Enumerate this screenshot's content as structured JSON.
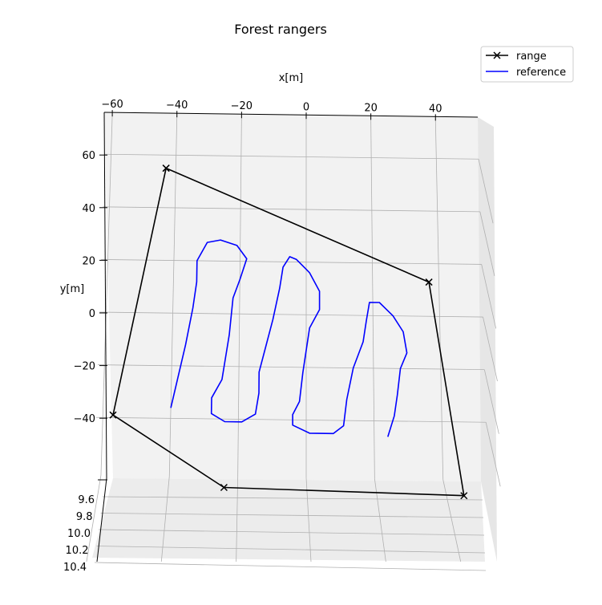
{
  "chart_data": {
    "type": "line",
    "projection": "3d",
    "title": "Forest rangers",
    "xlabel": "x[m]",
    "ylabel": "y[m]",
    "zlabel": "",
    "x_ticks": [
      -60,
      -40,
      -20,
      0,
      20,
      40
    ],
    "y_ticks": [
      60,
      40,
      20,
      0,
      -20,
      -40
    ],
    "z_ticks": [
      9.6,
      9.8,
      10.0,
      10.2,
      10.4
    ],
    "x_tick_labels": [
      "−60",
      "−40",
      "−20",
      "0",
      "20",
      "40"
    ],
    "y_tick_labels": [
      "60",
      "40",
      "20",
      "0",
      "−20",
      "−40"
    ],
    "z_tick_labels": [
      "9.6",
      "9.8",
      "10.0",
      "10.2",
      "10.4"
    ],
    "xlim": [
      -62,
      53
    ],
    "ylim": [
      -62,
      75
    ],
    "zlim": [
      9.5,
      10.45
    ],
    "grid": true,
    "legend_position": "top-right",
    "series": [
      {
        "name": "range",
        "color": "#000000",
        "marker": "x",
        "points": [
          {
            "x": -43,
            "y": 55
          },
          {
            "x": 37,
            "y": 13
          },
          {
            "x": 46,
            "y": -68
          },
          {
            "x": -24,
            "y": -66
          },
          {
            "x": -57,
            "y": -39
          },
          {
            "x": -43,
            "y": 55
          }
        ]
      },
      {
        "name": "reference",
        "color": "#0000ff",
        "marker": "none",
        "points": [
          {
            "x": -40,
            "y": -36
          },
          {
            "x": -36,
            "y": -12
          },
          {
            "x": -34,
            "y": 2
          },
          {
            "x": -33,
            "y": 12
          },
          {
            "x": -33,
            "y": 20
          },
          {
            "x": -30,
            "y": 27
          },
          {
            "x": -26,
            "y": 28
          },
          {
            "x": -21,
            "y": 26
          },
          {
            "x": -18,
            "y": 21
          },
          {
            "x": -20,
            "y": 13
          },
          {
            "x": -22,
            "y": 6
          },
          {
            "x": -23,
            "y": -8
          },
          {
            "x": -25,
            "y": -25
          },
          {
            "x": -28,
            "y": -32
          },
          {
            "x": -28,
            "y": -38
          },
          {
            "x": -24,
            "y": -41
          },
          {
            "x": -19,
            "y": -41
          },
          {
            "x": -15,
            "y": -38
          },
          {
            "x": -14,
            "y": -30
          },
          {
            "x": -14,
            "y": -22
          },
          {
            "x": -12,
            "y": -12
          },
          {
            "x": -10,
            "y": -2
          },
          {
            "x": -8,
            "y": 10
          },
          {
            "x": -7,
            "y": 18
          },
          {
            "x": -5,
            "y": 22
          },
          {
            "x": -3,
            "y": 21
          },
          {
            "x": 1,
            "y": 16
          },
          {
            "x": 4,
            "y": 9
          },
          {
            "x": 4,
            "y": 2
          },
          {
            "x": 1,
            "y": -5
          },
          {
            "x": -1,
            "y": -22
          },
          {
            "x": -2,
            "y": -33
          },
          {
            "x": -4,
            "y": -38
          },
          {
            "x": -4,
            "y": -42
          },
          {
            "x": 1,
            "y": -45
          },
          {
            "x": 8,
            "y": -45
          },
          {
            "x": 11,
            "y": -42
          },
          {
            "x": 12,
            "y": -32
          },
          {
            "x": 14,
            "y": -20
          },
          {
            "x": 17,
            "y": -10
          },
          {
            "x": 18,
            "y": -2
          },
          {
            "x": 19,
            "y": 5
          },
          {
            "x": 22,
            "y": 5
          },
          {
            "x": 26,
            "y": 0
          },
          {
            "x": 29,
            "y": -6
          },
          {
            "x": 30,
            "y": -14
          },
          {
            "x": 28,
            "y": -20
          },
          {
            "x": 27,
            "y": -30
          },
          {
            "x": 26,
            "y": -38
          },
          {
            "x": 24,
            "y": -46
          }
        ]
      }
    ]
  }
}
